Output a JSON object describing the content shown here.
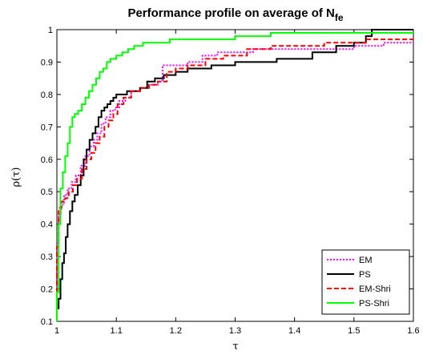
{
  "chart_data": {
    "type": "line",
    "step": true,
    "title": "Performance profile on average of N",
    "title_subscript": "fe",
    "xlabel": "τ",
    "ylabel": "ρ(τ)",
    "xlim": [
      1,
      1.6
    ],
    "ylim": [
      0.1,
      1
    ],
    "xticks": [
      "1",
      "1.1",
      "1.2",
      "1.3",
      "1.4",
      "1.5",
      "1.6"
    ],
    "xtick_values": [
      1,
      1.1,
      1.2,
      1.3,
      1.4,
      1.5,
      1.6
    ],
    "yticks": [
      "0.1",
      "0.2",
      "0.3",
      "0.4",
      "0.5",
      "0.6",
      "0.7",
      "0.8",
      "0.9",
      "1"
    ],
    "ytick_values": [
      0.1,
      0.2,
      0.3,
      0.4,
      0.5,
      0.6,
      0.7,
      0.8,
      0.9,
      1
    ],
    "grid": false,
    "legend_position": "bottom-right",
    "series": [
      {
        "name": "EM",
        "color": "#ff00ff",
        "dash": "dotted",
        "x": [
          1.0,
          1.003,
          1.007,
          1.012,
          1.018,
          1.025,
          1.032,
          1.04,
          1.048,
          1.055,
          1.062,
          1.068,
          1.075,
          1.082,
          1.09,
          1.098,
          1.105,
          1.115,
          1.125,
          1.14,
          1.155,
          1.17,
          1.178,
          1.2,
          1.22,
          1.245,
          1.27,
          1.3,
          1.33,
          1.36,
          1.42,
          1.5,
          1.55
        ],
        "y": [
          0.34,
          0.43,
          0.46,
          0.49,
          0.51,
          0.53,
          0.55,
          0.58,
          0.61,
          0.64,
          0.66,
          0.68,
          0.71,
          0.73,
          0.75,
          0.76,
          0.78,
          0.79,
          0.81,
          0.82,
          0.83,
          0.84,
          0.89,
          0.89,
          0.9,
          0.92,
          0.93,
          0.93,
          0.94,
          0.94,
          0.94,
          0.95,
          0.96
        ]
      },
      {
        "name": "PS",
        "color": "#000000",
        "dash": "solid",
        "x": [
          1.0,
          1.003,
          1.006,
          1.009,
          1.012,
          1.015,
          1.018,
          1.022,
          1.026,
          1.03,
          1.035,
          1.04,
          1.045,
          1.05,
          1.055,
          1.06,
          1.065,
          1.07,
          1.075,
          1.08,
          1.085,
          1.09,
          1.095,
          1.1,
          1.108,
          1.118,
          1.128,
          1.14,
          1.152,
          1.165,
          1.18,
          1.2,
          1.22,
          1.26,
          1.3,
          1.37,
          1.43,
          1.47,
          1.5,
          1.52,
          1.53
        ],
        "y": [
          0.14,
          0.17,
          0.23,
          0.28,
          0.31,
          0.36,
          0.4,
          0.44,
          0.47,
          0.49,
          0.52,
          0.55,
          0.6,
          0.63,
          0.66,
          0.68,
          0.7,
          0.73,
          0.75,
          0.76,
          0.77,
          0.78,
          0.79,
          0.8,
          0.8,
          0.81,
          0.81,
          0.82,
          0.84,
          0.85,
          0.86,
          0.87,
          0.88,
          0.89,
          0.9,
          0.91,
          0.93,
          0.95,
          0.96,
          0.98,
          1.0
        ]
      },
      {
        "name": "EM-Shri",
        "color": "#ff0000",
        "dash": "dashed",
        "x": [
          1.0,
          1.003,
          1.008,
          1.014,
          1.02,
          1.027,
          1.034,
          1.042,
          1.05,
          1.058,
          1.065,
          1.072,
          1.08,
          1.087,
          1.095,
          1.102,
          1.112,
          1.125,
          1.14,
          1.155,
          1.17,
          1.185,
          1.2,
          1.22,
          1.25,
          1.28,
          1.32,
          1.36,
          1.45,
          1.52
        ],
        "y": [
          0.33,
          0.45,
          0.47,
          0.48,
          0.5,
          0.52,
          0.54,
          0.57,
          0.6,
          0.62,
          0.65,
          0.67,
          0.7,
          0.72,
          0.74,
          0.77,
          0.79,
          0.81,
          0.82,
          0.83,
          0.84,
          0.87,
          0.88,
          0.89,
          0.91,
          0.92,
          0.94,
          0.95,
          0.96,
          0.97
        ]
      },
      {
        "name": "PS-Shri",
        "color": "#00ff00",
        "dash": "solid",
        "x": [
          1.0,
          1.003,
          1.006,
          1.01,
          1.014,
          1.018,
          1.022,
          1.026,
          1.03,
          1.036,
          1.042,
          1.048,
          1.054,
          1.06,
          1.066,
          1.072,
          1.078,
          1.084,
          1.09,
          1.095,
          1.1,
          1.11,
          1.12,
          1.13,
          1.145,
          1.16,
          1.19,
          1.22,
          1.26,
          1.3,
          1.36,
          1.5
        ],
        "y": [
          0.19,
          0.4,
          0.51,
          0.56,
          0.61,
          0.65,
          0.7,
          0.73,
          0.74,
          0.75,
          0.77,
          0.79,
          0.81,
          0.83,
          0.85,
          0.87,
          0.88,
          0.9,
          0.91,
          0.91,
          0.92,
          0.93,
          0.94,
          0.95,
          0.96,
          0.96,
          0.97,
          0.97,
          0.97,
          0.98,
          0.99,
          0.99
        ]
      }
    ]
  }
}
